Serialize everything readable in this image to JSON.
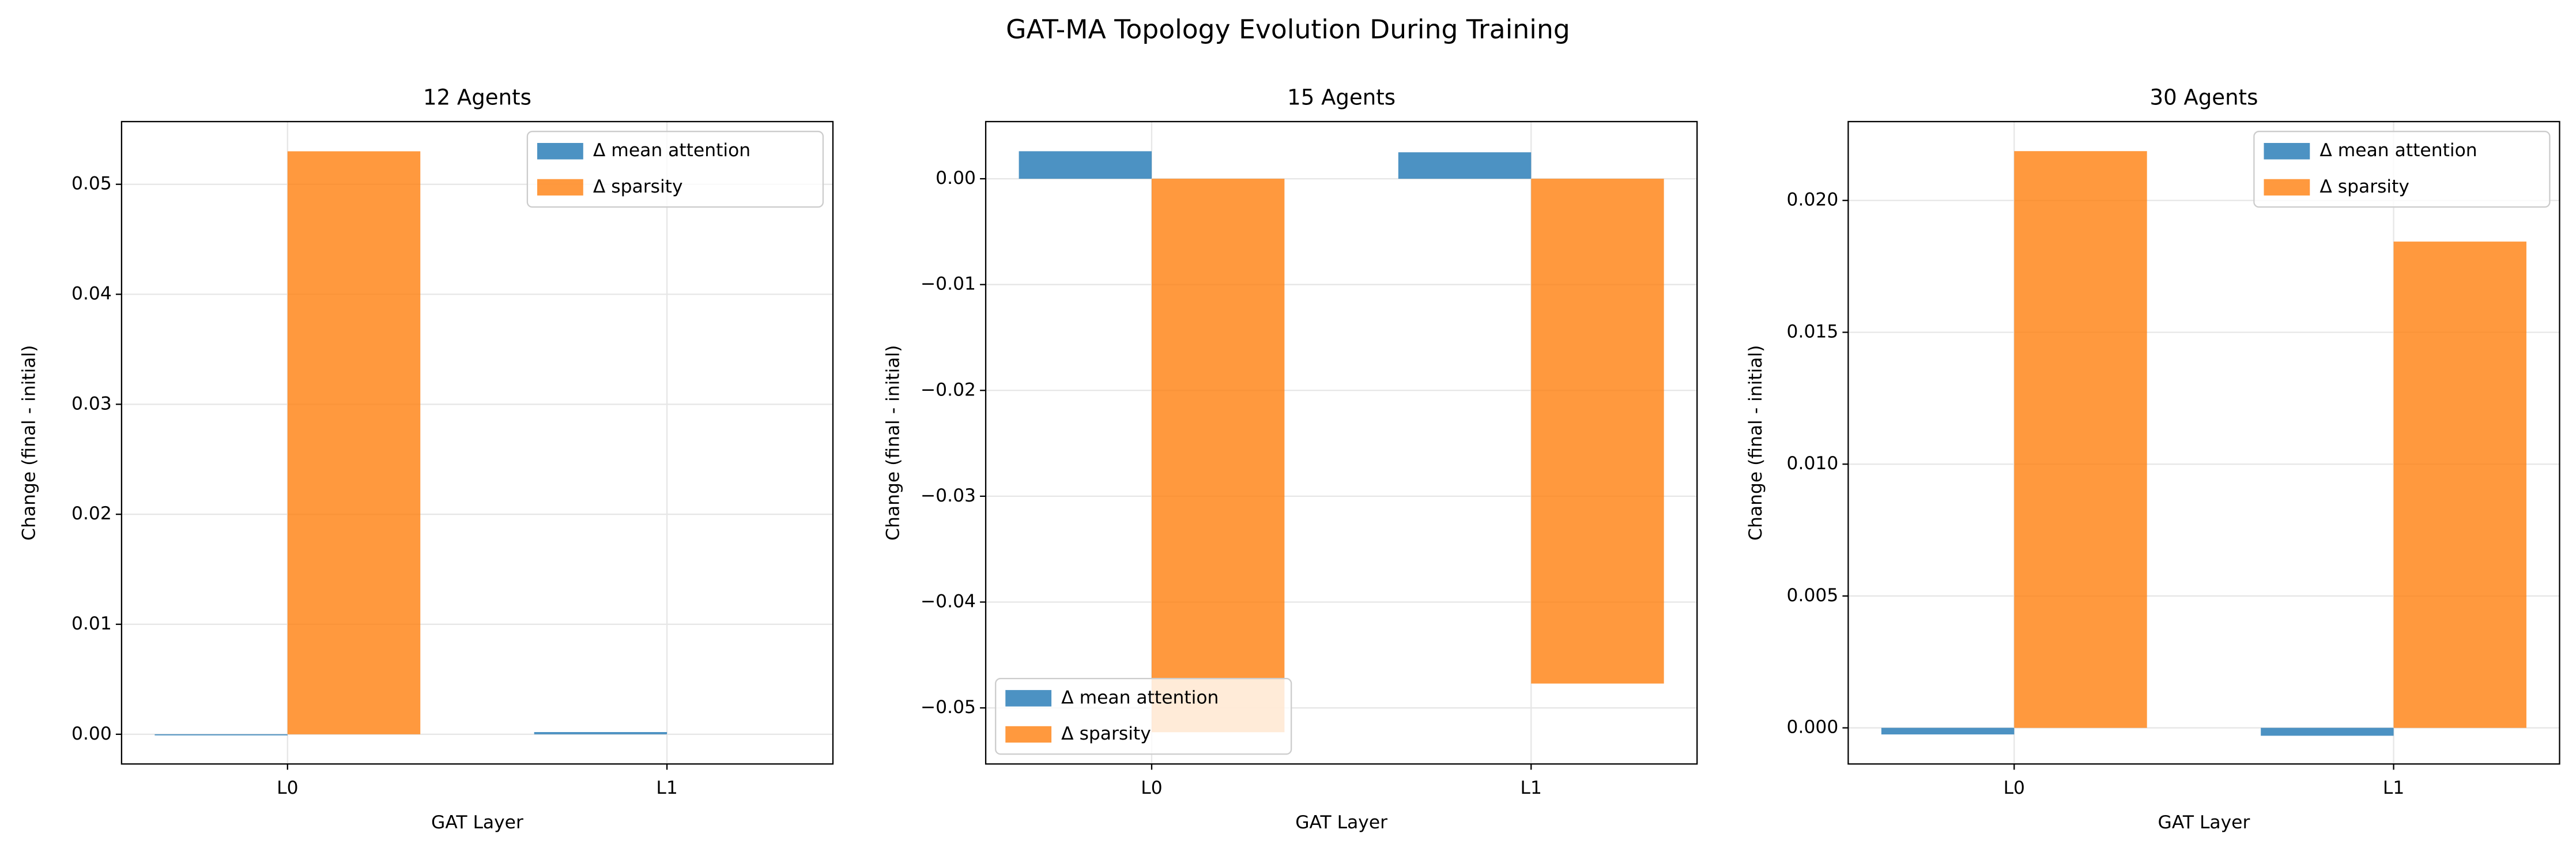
{
  "title": "GAT-MA Topology Evolution During Training",
  "chart_data": [
    {
      "type": "bar",
      "title": "12 Agents",
      "xlabel": "GAT Layer",
      "ylabel": "Change (final - initial)",
      "categories": [
        "L0",
        "L1"
      ],
      "series": [
        {
          "name": "Δ mean attention",
          "color": "#1f77b4",
          "values": [
            -0.0001,
            0.0002
          ]
        },
        {
          "name": "Δ sparsity",
          "color": "#ff7f0e",
          "values": [
            0.053,
            0.0
          ]
        }
      ],
      "ylim": [
        -0.0027,
        0.0557
      ],
      "yticks": [
        {
          "value": 0,
          "label": "0.00"
        },
        {
          "value": 0.01,
          "label": "0.01"
        },
        {
          "value": 0.02,
          "label": "0.02"
        },
        {
          "value": 0.03,
          "label": "0.03"
        },
        {
          "value": 0.04,
          "label": "0.04"
        },
        {
          "value": 0.05,
          "label": "0.05"
        }
      ],
      "grid": true,
      "legend": "upper right"
    },
    {
      "type": "bar",
      "title": "15 Agents",
      "xlabel": "GAT Layer",
      "ylabel": "Change (final - initial)",
      "categories": [
        "L0",
        "L1"
      ],
      "series": [
        {
          "name": "Δ mean attention",
          "color": "#1f77b4",
          "values": [
            0.0026,
            0.0025
          ]
        },
        {
          "name": "Δ sparsity",
          "color": "#ff7f0e",
          "values": [
            -0.0523,
            -0.0477
          ]
        }
      ],
      "ylim": [
        -0.0553,
        0.0054
      ],
      "yticks": [
        {
          "value": 0,
          "label": "0.00"
        },
        {
          "value": -0.01,
          "label": "−0.01"
        },
        {
          "value": -0.02,
          "label": "−0.02"
        },
        {
          "value": -0.03,
          "label": "−0.03"
        },
        {
          "value": -0.04,
          "label": "−0.04"
        },
        {
          "value": -0.05,
          "label": "−0.05"
        }
      ],
      "grid": true,
      "legend": "lower left"
    },
    {
      "type": "bar",
      "title": "30 Agents",
      "xlabel": "GAT Layer",
      "ylabel": "Change (final - initial)",
      "categories": [
        "L0",
        "L1"
      ],
      "series": [
        {
          "name": "Δ mean attention",
          "color": "#1f77b4",
          "values": [
            -0.00025,
            -0.0003
          ]
        },
        {
          "name": "Δ sparsity",
          "color": "#ff7f0e",
          "values": [
            0.02187,
            0.01844
          ]
        }
      ],
      "ylim": [
        -0.00137,
        0.02299
      ],
      "yticks": [
        {
          "value": 0,
          "label": "0.000"
        },
        {
          "value": 0.005,
          "label": "0.005"
        },
        {
          "value": 0.01,
          "label": "0.010"
        },
        {
          "value": 0.015,
          "label": "0.015"
        },
        {
          "value": 0.02,
          "label": "0.020"
        }
      ],
      "grid": true,
      "legend": "upper right"
    }
  ]
}
